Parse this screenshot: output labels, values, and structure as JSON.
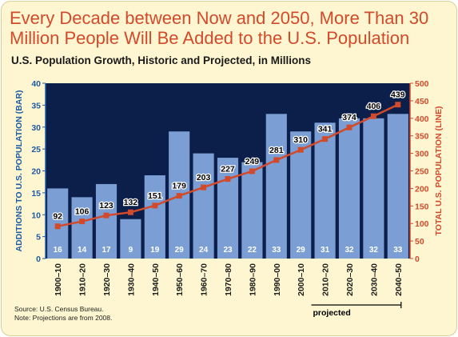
{
  "title": "Every Decade between Now and 2050, More Than 30 Million People Will Be Added to the U.S. Population",
  "subtitle": "U.S. Population Growth, Historic and Projected, in Millions",
  "footnote": {
    "source": "Source: U.S. Census Bureau.",
    "note": "Note: Projections are from 2008."
  },
  "projected_label": "projected",
  "chart_data": {
    "type": "bar",
    "categories": [
      "1900–10",
      "1910–20",
      "1920–30",
      "1930–40",
      "1940–50",
      "1950–60",
      "1960–70",
      "1970–80",
      "1980–90",
      "1990–00",
      "2000–10",
      "2010–20",
      "2020–30",
      "2030–40",
      "2040–50"
    ],
    "series": [
      {
        "name": "Additions to U.S. Population (Bar)",
        "type": "bar",
        "axis": "left",
        "values": [
          16,
          14,
          17,
          9,
          19,
          29,
          24,
          23,
          22,
          33,
          29,
          31,
          32,
          32,
          33
        ],
        "color": "#7b9fd4"
      },
      {
        "name": "Total U.S. Population (Line)",
        "type": "line",
        "axis": "right",
        "values": [
          92,
          106,
          123,
          132,
          151,
          179,
          203,
          227,
          249,
          281,
          310,
          341,
          374,
          406,
          439
        ],
        "color": "#d24a2c"
      }
    ],
    "ylabel_left": "ADDITIONS TO U.S. POPULATION (BAR)",
    "ylabel_right": "TOTAL U.S. POPULATION (LINE)",
    "ylim_left": [
      0,
      40
    ],
    "ylim_right": [
      0,
      500
    ],
    "yticks_left": [
      0,
      5,
      10,
      15,
      20,
      25,
      30,
      35,
      40
    ],
    "yticks_right": [
      0,
      50,
      100,
      150,
      200,
      250,
      300,
      350,
      400,
      450,
      500
    ],
    "projected_from_index": 11,
    "plot_background": "#0b1f4a",
    "left_axis_color": "#1f5aa6",
    "right_axis_color": "#d24a2c"
  }
}
